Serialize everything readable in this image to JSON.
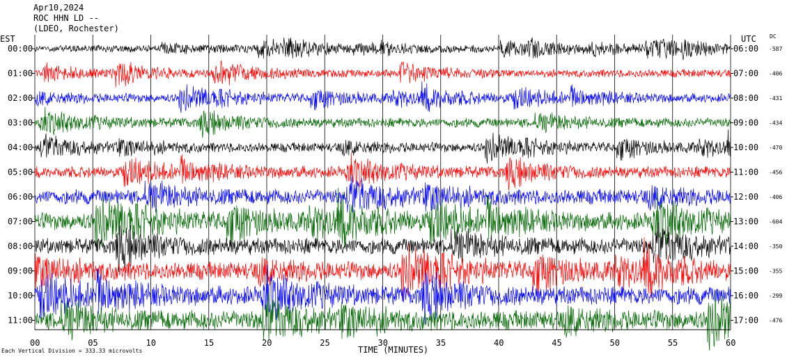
{
  "header": {
    "line1": "Apr10,2024",
    "line2": "ROC HHN LD --",
    "line3": "(LDEO, Rochester)"
  },
  "left_zone_label": "EST",
  "right_zone_label": "UTC",
  "dc_label": "DC",
  "footnote": "Each Vertical Division = 333.33 microvolts",
  "chart_data": {
    "type": "line",
    "xlabel": "TIME (MINUTES)",
    "xlim": [
      0,
      60
    ],
    "x_ticks": [
      "00",
      "05",
      "10",
      "15",
      "20",
      "25",
      "30",
      "35",
      "40",
      "45",
      "50",
      "55",
      "60"
    ],
    "grid": true,
    "series_colors": [
      "#000000",
      "#ff0000",
      "#0000ff",
      "#006400"
    ],
    "rows": [
      {
        "est": "00:00",
        "utc": "06:00",
        "dc": "-587",
        "color": "#000000",
        "noise": 0.55
      },
      {
        "est": "01:00",
        "utc": "07:00",
        "dc": "-406",
        "color": "#ff0000",
        "noise": 0.6
      },
      {
        "est": "02:00",
        "utc": "08:00",
        "dc": "-431",
        "color": "#0000ff",
        "noise": 0.65
      },
      {
        "est": "03:00",
        "utc": "09:00",
        "dc": "-434",
        "color": "#006400",
        "noise": 0.7
      },
      {
        "est": "04:00",
        "utc": "10:00",
        "dc": "-470",
        "color": "#000000",
        "noise": 0.7
      },
      {
        "est": "05:00",
        "utc": "11:00",
        "dc": "-456",
        "color": "#ff0000",
        "noise": 0.85
      },
      {
        "est": "06:00",
        "utc": "12:00",
        "dc": "-406",
        "color": "#0000ff",
        "noise": 1.1
      },
      {
        "est": "07:00",
        "utc": "13:00",
        "dc": "-604",
        "color": "#006400",
        "noise": 1.3
      },
      {
        "est": "08:00",
        "utc": "14:00",
        "dc": "-350",
        "color": "#000000",
        "noise": 1.2
      },
      {
        "est": "09:00",
        "utc": "15:00",
        "dc": "-355",
        "color": "#ff0000",
        "noise": 1.3
      },
      {
        "est": "10:00",
        "utc": "16:00",
        "dc": "-299",
        "color": "#0000ff",
        "noise": 1.35
      },
      {
        "est": "11:00",
        "utc": "17:00",
        "dc": "-476",
        "color": "#006400",
        "noise": 1.4
      }
    ]
  }
}
